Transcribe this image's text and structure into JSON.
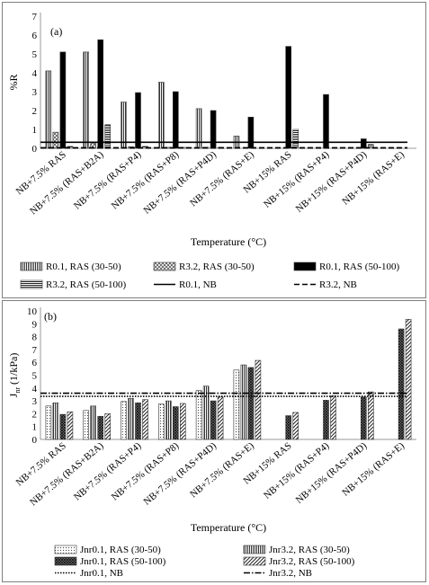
{
  "figure_a": {
    "panel_label": "(a)",
    "y_axis_label": "%R",
    "x_axis_label": "Temperature (°C)",
    "legend": [
      {
        "key": "r01_ras_30_50",
        "label": "R0.1, RAS (30-50)"
      },
      {
        "key": "r32_ras_30_50",
        "label": "R3.2, RAS (30-50)"
      },
      {
        "key": "r01_ras_50_100",
        "label": "R0.1, RAS (50-100)"
      },
      {
        "key": "r32_ras_50_100",
        "label": "R3.2, RAS (50-100)"
      },
      {
        "key": "r01_nb",
        "label": "R0.1, NB"
      },
      {
        "key": "r32_nb",
        "label": "R3.2, NB"
      }
    ]
  },
  "figure_b": {
    "panel_label": "(b)",
    "y_axis_label": "Jnr (1/kPa)",
    "x_axis_label": "Temperature (°C)",
    "legend": [
      {
        "key": "jnr01_ras_30_50",
        "label": "Jnr0.1, RAS (30-50)"
      },
      {
        "key": "jnr32_ras_30_50",
        "label": "Jnr3.2, RAS (30-50)"
      },
      {
        "key": "jnr01_ras_50_100",
        "label": "Jnr0.1, RAS (50-100)"
      },
      {
        "key": "jnr32_ras_50_100",
        "label": "Jnr3.2, RAS (50-100)"
      },
      {
        "key": "jnr01_nb",
        "label": "Jnr0.1, NB"
      },
      {
        "key": "jnr32_nb",
        "label": "Jnr3.2, NB"
      }
    ]
  },
  "chart_data": [
    {
      "type": "bar",
      "title": "(a)",
      "xlabel": "Temperature (°C)",
      "ylabel": "%R",
      "ylim": [
        0,
        7
      ],
      "yticks": [
        0,
        1,
        2,
        3,
        4,
        5,
        6,
        7
      ],
      "grid": false,
      "legend_position": "bottom",
      "categories": [
        "NB+7.5% RAS",
        "NB+7.5% (RAS+B2A)",
        "NB+7.5% (RAS+P4)",
        "NB+7.5% (RAS+P8)",
        "NB+7.5% (RAS+P4D)",
        "NB+7.5% (RAS+E)",
        "NB+15% RAS",
        "NB+15% (RAS+P4)",
        "NB+15% (RAS+P4D)",
        "NB+15% (RAS+E)"
      ],
      "series": [
        {
          "name": "R0.1, RAS (30-50)",
          "pattern": "vertical-stripes",
          "values": [
            4.1,
            5.1,
            2.45,
            3.5,
            2.1,
            0.65,
            null,
            null,
            null,
            null
          ]
        },
        {
          "name": "R3.2, RAS (30-50)",
          "pattern": "crosshatch",
          "values": [
            0.85,
            0.25,
            0.08,
            0.05,
            0.05,
            0.0,
            null,
            null,
            null,
            null
          ]
        },
        {
          "name": "R0.1, RAS (50-100)",
          "pattern": "solid-black",
          "values": [
            5.1,
            5.75,
            2.95,
            3.0,
            2.0,
            1.65,
            5.4,
            2.85,
            0.5,
            null
          ]
        },
        {
          "name": "R3.2, RAS (50-100)",
          "pattern": "horizontal-stripes",
          "values": [
            0.1,
            1.25,
            0.1,
            0.05,
            0.05,
            0.0,
            1.0,
            0.0,
            0.2,
            null
          ]
        }
      ],
      "reference_lines": [
        {
          "name": "R0.1, NB",
          "value": 0.32,
          "style": "solid"
        },
        {
          "name": "R3.2, NB",
          "value": 0.02,
          "style": "dashed"
        }
      ]
    },
    {
      "type": "bar",
      "title": "(b)",
      "xlabel": "Temperature (°C)",
      "ylabel": "Jnr (1/kPa)",
      "ylim": [
        0,
        10
      ],
      "yticks": [
        0,
        1,
        2,
        3,
        4,
        5,
        6,
        7,
        8,
        9,
        10
      ],
      "grid": false,
      "legend_position": "bottom",
      "categories": [
        "NB+7.5% RAS",
        "NB+7.5% (RAS+B2A)",
        "NB+7.5% (RAS+P4)",
        "NB+7.5% (RAS+P8)",
        "NB+7.5% (RAS+P4D)",
        "NB+7.5% (RAS+E)",
        "NB+15% RAS",
        "NB+15% (RAS+P4)",
        "NB+15% (RAS+P4D)",
        "NB+15% (RAS+E)"
      ],
      "series": [
        {
          "name": "Jnr0.1, RAS (30-50)",
          "pattern": "dots",
          "values": [
            2.6,
            2.25,
            2.95,
            2.75,
            3.8,
            5.4,
            null,
            null,
            null,
            null
          ]
        },
        {
          "name": "Jnr3.2, RAS (30-50)",
          "pattern": "vertical-stripes",
          "values": [
            2.85,
            2.6,
            3.2,
            3.0,
            4.15,
            5.8,
            null,
            null,
            null,
            null
          ]
        },
        {
          "name": "Jnr0.1, RAS (50-100)",
          "pattern": "dark-crosshatch",
          "values": [
            1.95,
            1.8,
            2.85,
            2.55,
            3.0,
            5.6,
            1.85,
            3.05,
            3.3,
            8.6
          ]
        },
        {
          "name": "Jnr3.2, RAS (50-100)",
          "pattern": "diagonal",
          "values": [
            2.15,
            2.0,
            3.1,
            2.8,
            3.3,
            6.15,
            2.1,
            3.4,
            3.7,
            9.35
          ]
        }
      ],
      "reference_lines": [
        {
          "name": "Jnr0.1, NB",
          "value": 3.35,
          "style": "dotted"
        },
        {
          "name": "Jnr3.2, NB",
          "value": 3.6,
          "style": "dash-dot"
        }
      ]
    }
  ]
}
